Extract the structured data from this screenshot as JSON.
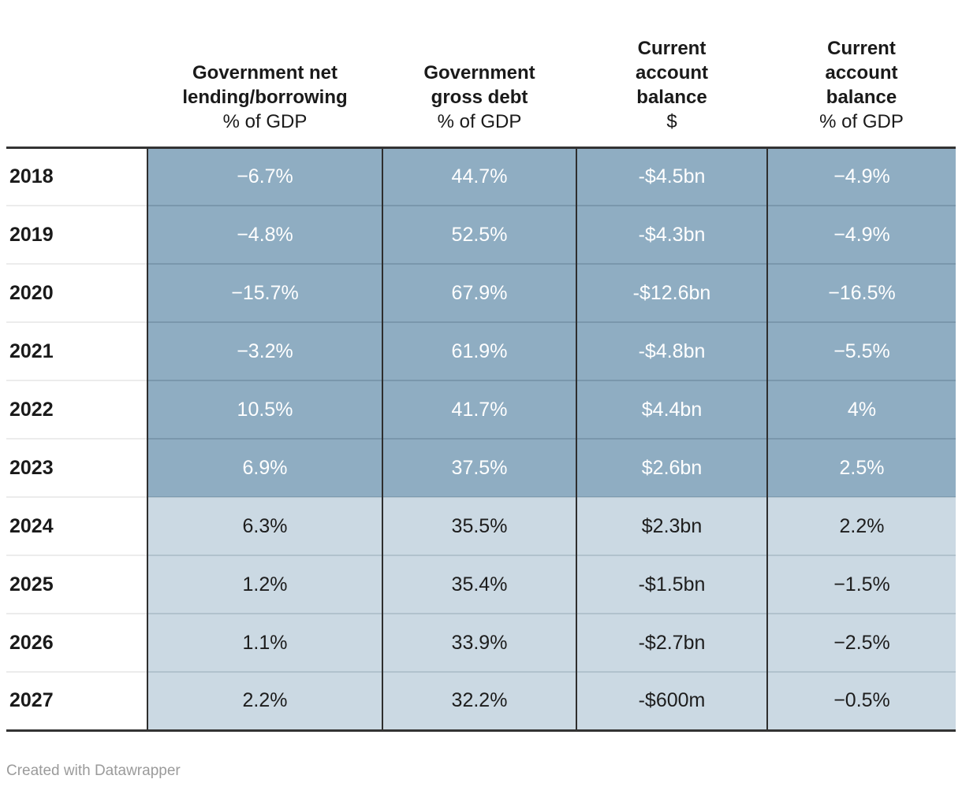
{
  "chart_data": {
    "type": "table",
    "categories": [
      "2018",
      "2019",
      "2020",
      "2021",
      "2022",
      "2023",
      "2024",
      "2025",
      "2026",
      "2027"
    ],
    "series": [
      {
        "name": "Government net lending/borrowing % of GDP",
        "values": [
          -6.7,
          -4.8,
          -15.7,
          -3.2,
          10.5,
          6.9,
          6.3,
          1.2,
          1.1,
          2.2
        ]
      },
      {
        "name": "Government gross debt % of GDP",
        "values": [
          44.7,
          52.5,
          67.9,
          61.9,
          41.7,
          37.5,
          35.5,
          35.4,
          33.9,
          32.2
        ]
      },
      {
        "name": "Current account balance $bn",
        "values": [
          -4.5,
          -4.3,
          -12.6,
          -4.8,
          4.4,
          2.6,
          2.3,
          -1.5,
          -2.7,
          -0.6
        ]
      },
      {
        "name": "Current account balance % of GDP",
        "values": [
          -4.9,
          -4.9,
          -16.5,
          -5.5,
          4,
          2.5,
          2.2,
          -1.5,
          -2.5,
          -0.5
        ]
      }
    ]
  },
  "table": {
    "columns": [
      {
        "title_lines": [
          "Government net",
          "lending/borrowing"
        ],
        "unit": "% of GDP"
      },
      {
        "title_lines": [
          "Government",
          "gross debt"
        ],
        "unit": "% of GDP"
      },
      {
        "title_lines": [
          "Current",
          "account",
          "balance"
        ],
        "unit": "$"
      },
      {
        "title_lines": [
          "Current",
          "account",
          "balance"
        ],
        "unit": "% of GDP"
      }
    ],
    "rows": [
      {
        "year": "2018",
        "theme": "dark",
        "values": [
          "−6.7%",
          "44.7%",
          "-$4.5bn",
          "−4.9%"
        ]
      },
      {
        "year": "2019",
        "theme": "dark",
        "values": [
          "−4.8%",
          "52.5%",
          "-$4.3bn",
          "−4.9%"
        ]
      },
      {
        "year": "2020",
        "theme": "dark",
        "values": [
          "−15.7%",
          "67.9%",
          "-$12.6bn",
          "−16.5%"
        ]
      },
      {
        "year": "2021",
        "theme": "dark",
        "values": [
          "−3.2%",
          "61.9%",
          "-$4.8bn",
          "−5.5%"
        ]
      },
      {
        "year": "2022",
        "theme": "dark",
        "values": [
          "10.5%",
          "41.7%",
          "$4.4bn",
          "4%"
        ]
      },
      {
        "year": "2023",
        "theme": "dark",
        "values": [
          "6.9%",
          "37.5%",
          "$2.6bn",
          "2.5%"
        ]
      },
      {
        "year": "2024",
        "theme": "light",
        "values": [
          "6.3%",
          "35.5%",
          "$2.3bn",
          "2.2%"
        ]
      },
      {
        "year": "2025",
        "theme": "light",
        "values": [
          "1.2%",
          "35.4%",
          "-$1.5bn",
          "−1.5%"
        ]
      },
      {
        "year": "2026",
        "theme": "light",
        "values": [
          "1.1%",
          "33.9%",
          "-$2.7bn",
          "−2.5%"
        ]
      },
      {
        "year": "2027",
        "theme": "light",
        "values": [
          "2.2%",
          "32.2%",
          "-$600m",
          "−0.5%"
        ]
      }
    ]
  },
  "footer": {
    "credit": "Created with Datawrapper"
  },
  "colors": {
    "row_dark_bg": "#8fadc2",
    "row_light_bg": "#cbd9e3",
    "dark_row_text": "#ffffff",
    "light_row_text": "#1d1d1d",
    "strong_border": "#333333",
    "credit_text": "#9b9b9b"
  }
}
